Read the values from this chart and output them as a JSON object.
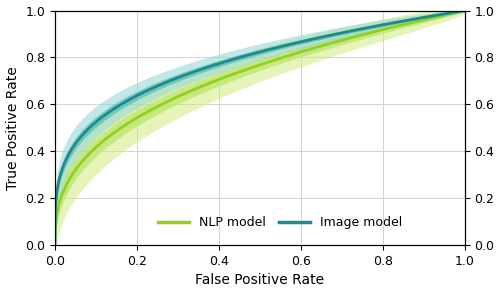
{
  "nlp_color": "#90d020",
  "nlp_band1_color": "#b8e060",
  "nlp_band3_color": "#d0ec80",
  "image_color": "#1a8c8c",
  "image_band1_color": "#50b8b8",
  "image_band3_color": "#90d4d4",
  "xlabel": "False Positive Rate",
  "ylabel": "True Positive Rate",
  "xlim": [
    0.0,
    1.0
  ],
  "ylim": [
    0.0,
    1.0
  ],
  "xticks": [
    0.0,
    0.2,
    0.4,
    0.6,
    0.8,
    1.0
  ],
  "yticks": [
    0.0,
    0.2,
    0.4,
    0.6,
    0.8,
    1.0
  ],
  "legend_nlp": "NLP model",
  "legend_image": "Image model",
  "grid": true,
  "linewidth": 2.0
}
